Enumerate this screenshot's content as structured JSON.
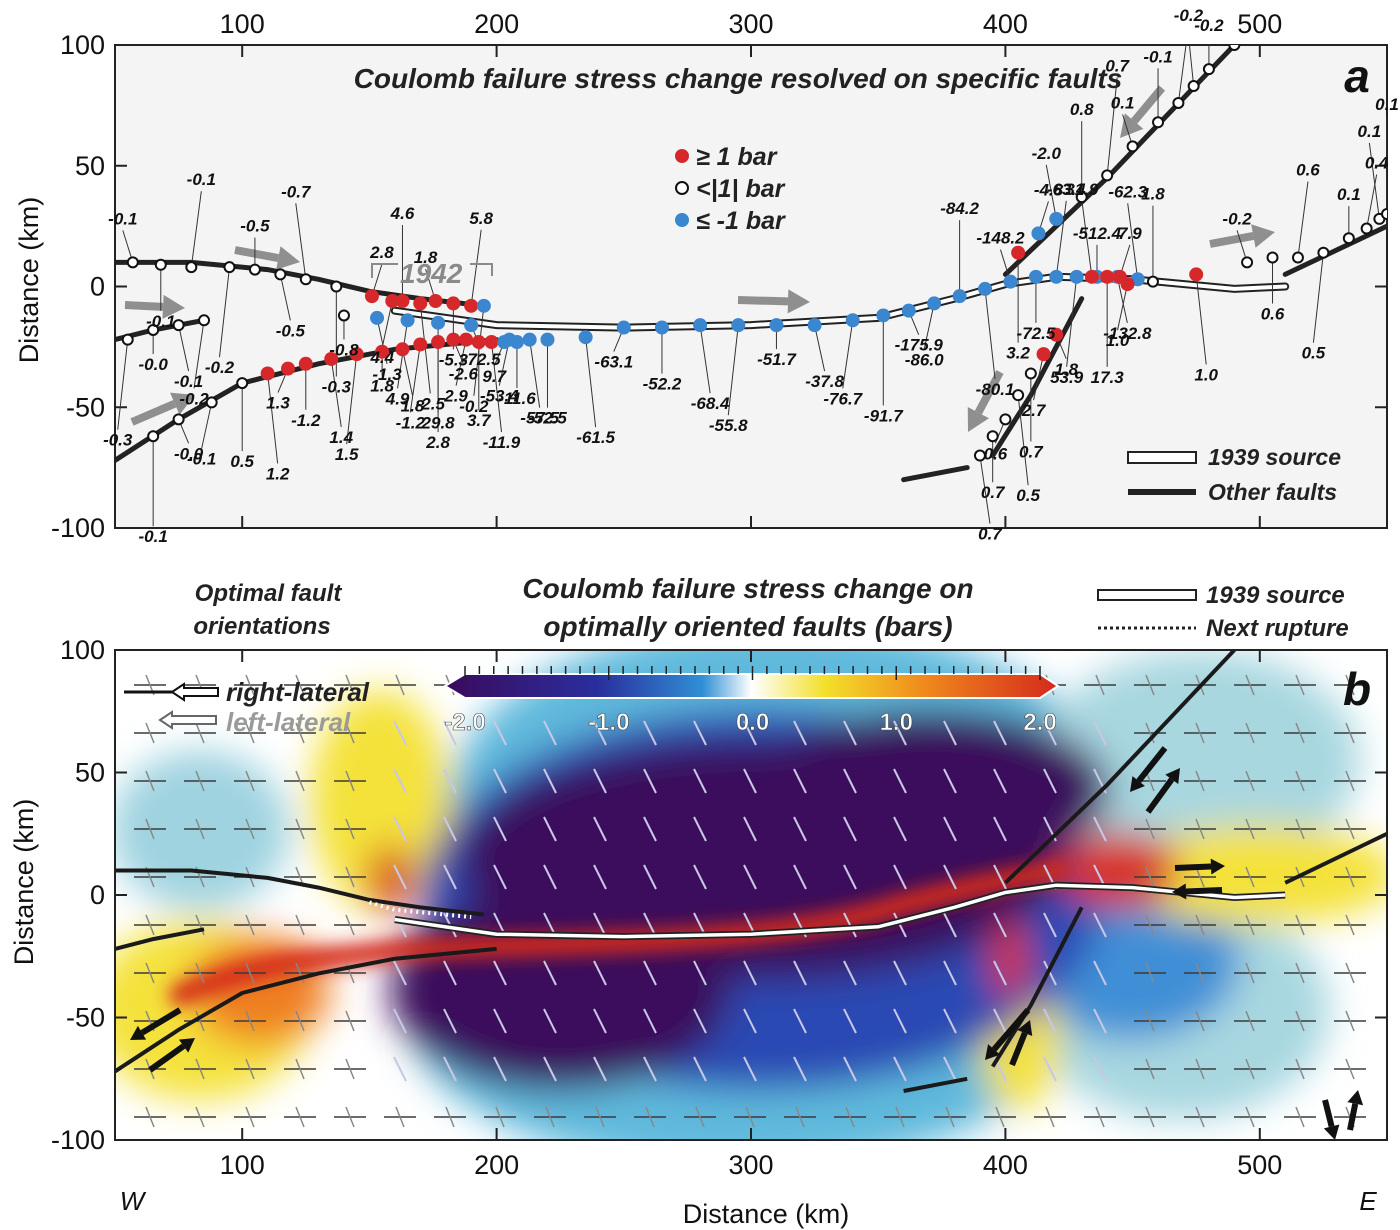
{
  "chart_data": [
    {
      "type": "scatter",
      "panel": "a",
      "title": "Coulomb failure stress change resolved on specific faults",
      "ylabel": "Distance (km)",
      "xlim": [
        50,
        550
      ],
      "ylim": [
        -100,
        100
      ],
      "x_ticks": [
        100,
        200,
        300,
        400,
        500
      ],
      "y_ticks": [
        100,
        50,
        0,
        -50,
        -100
      ],
      "annotation": "1942",
      "legend": [
        {
          "label": "≥  1 bar",
          "color": "#d6282b",
          "kind": "positive"
        },
        {
          "label": "<|1| bar",
          "color": "#ffffff",
          "kind": "neutral"
        },
        {
          "label": "≤ -1 bar",
          "color": "#3a86cf",
          "kind": "negative"
        }
      ],
      "line_legend": [
        {
          "label": "1939 source",
          "kind": "source"
        },
        {
          "label": "Other faults",
          "kind": "fault"
        }
      ],
      "faults": [
        {
          "name": "north-west",
          "points": [
            [
              50,
              10
            ],
            [
              80,
              10
            ],
            [
              110,
              7
            ],
            [
              130,
              3
            ],
            [
              150,
              -2
            ],
            [
              170,
              -5
            ],
            [
              195,
              -8
            ]
          ]
        },
        {
          "name": "1939-rupture",
          "points": [
            [
              160,
              -10
            ],
            [
              200,
              -16
            ],
            [
              250,
              -17
            ],
            [
              300,
              -16
            ],
            [
              350,
              -13
            ],
            [
              380,
              -5
            ],
            [
              400,
              1
            ],
            [
              420,
              4
            ],
            [
              450,
              3
            ],
            [
              490,
              -1
            ],
            [
              510,
              0
            ]
          ]
        },
        {
          "name": "south-west-1",
          "points": [
            [
              50,
              -22
            ],
            [
              65,
              -18
            ],
            [
              85,
              -14
            ]
          ]
        },
        {
          "name": "south-west-2",
          "points": [
            [
              50,
              -72
            ],
            [
              75,
              -55
            ],
            [
              100,
              -40
            ],
            [
              130,
              -32
            ],
            [
              160,
              -26
            ],
            [
              200,
              -22
            ]
          ]
        },
        {
          "name": "north-east",
          "points": [
            [
              400,
              5
            ],
            [
              440,
              45
            ],
            [
              490,
              100
            ]
          ]
        },
        {
          "name": "south-east",
          "points": [
            [
              395,
              -70
            ],
            [
              410,
              -45
            ],
            [
              430,
              -5
            ]
          ]
        },
        {
          "name": "east",
          "points": [
            [
              510,
              5
            ],
            [
              540,
              20
            ],
            [
              550,
              25
            ]
          ]
        },
        {
          "name": "south-tail",
          "points": [
            [
              360,
              -80
            ],
            [
              385,
              -75
            ]
          ]
        }
      ],
      "values": [
        {
          "x": 57,
          "y": 10,
          "v": "-0.1",
          "s": "neutral"
        },
        {
          "x": 68,
          "y": 9,
          "v": "-0.1",
          "s": "neutral"
        },
        {
          "x": 80,
          "y": 8,
          "v": "-0.1",
          "s": "neutral"
        },
        {
          "x": 95,
          "y": 8,
          "v": "-0.2",
          "s": "neutral"
        },
        {
          "x": 105,
          "y": 7,
          "v": "-0.5",
          "s": "neutral"
        },
        {
          "x": 115,
          "y": 5,
          "v": "-0.5",
          "s": "neutral"
        },
        {
          "x": 125,
          "y": 3,
          "v": "-0.7",
          "s": "neutral"
        },
        {
          "x": 137,
          "y": 0,
          "v": "-0.3",
          "s": "neutral"
        },
        {
          "x": 151,
          "y": -4,
          "v": "2.8",
          "s": "positive"
        },
        {
          "x": 159,
          "y": -6,
          "v": "4.4",
          "s": "positive"
        },
        {
          "x": 163,
          "y": -6,
          "v": "4.6",
          "s": "positive"
        },
        {
          "x": 170,
          "y": -7,
          "v": "-2.5",
          "s": "positive"
        },
        {
          "x": 176,
          "y": -6,
          "v": "1.8",
          "s": "positive"
        },
        {
          "x": 183,
          "y": -7,
          "v": "-5.3",
          "s": "positive"
        },
        {
          "x": 190,
          "y": -8,
          "v": "5.8",
          "s": "positive"
        },
        {
          "x": 195,
          "y": -8,
          "v": "-0.2",
          "s": "negative"
        },
        {
          "x": 140,
          "y": -12,
          "v": "-0.8",
          "s": "neutral"
        },
        {
          "x": 153,
          "y": -13,
          "v": "-1.3",
          "s": "negative"
        },
        {
          "x": 165,
          "y": -14,
          "v": "4.9",
          "s": "negative"
        },
        {
          "x": 177,
          "y": -15,
          "v": "29.8",
          "s": "negative"
        },
        {
          "x": 190,
          "y": -16,
          "v": "-72.5",
          "s": "negative"
        },
        {
          "x": 205,
          "y": -22,
          "v": "-53.4",
          "s": "negative"
        },
        {
          "x": 220,
          "y": -22,
          "v": "-52.5",
          "s": "negative"
        },
        {
          "x": 235,
          "y": -21,
          "v": "-61.5",
          "s": "negative"
        },
        {
          "x": 250,
          "y": -17,
          "v": "-63.1",
          "s": "negative"
        },
        {
          "x": 265,
          "y": -17,
          "v": "-52.2",
          "s": "negative"
        },
        {
          "x": 280,
          "y": -16,
          "v": "-68.4",
          "s": "negative"
        },
        {
          "x": 295,
          "y": -16,
          "v": "-55.8",
          "s": "negative"
        },
        {
          "x": 310,
          "y": -16,
          "v": "-51.7",
          "s": "negative"
        },
        {
          "x": 325,
          "y": -16,
          "v": "-37.8",
          "s": "negative"
        },
        {
          "x": 340,
          "y": -14,
          "v": "-76.7",
          "s": "negative"
        },
        {
          "x": 352,
          "y": -12,
          "v": "-91.7",
          "s": "negative"
        },
        {
          "x": 362,
          "y": -10,
          "v": "-175.9",
          "s": "negative"
        },
        {
          "x": 372,
          "y": -7,
          "v": "-86.0",
          "s": "negative"
        },
        {
          "x": 382,
          "y": -4,
          "v": "-84.2",
          "s": "negative"
        },
        {
          "x": 392,
          "y": -1,
          "v": "-80.1",
          "s": "negative"
        },
        {
          "x": 402,
          "y": 2,
          "v": "-148.2",
          "s": "negative"
        },
        {
          "x": 412,
          "y": 4,
          "v": "-72.5",
          "s": "negative"
        },
        {
          "x": 420,
          "y": 4,
          "v": "-63.4",
          "s": "negative"
        },
        {
          "x": 428,
          "y": 4,
          "v": "53.9",
          "s": "negative"
        },
        {
          "x": 436,
          "y": 4,
          "v": "-512.4",
          "s": "negative"
        },
        {
          "x": 444,
          "y": 4,
          "v": "-132.8",
          "s": "negative"
        },
        {
          "x": 452,
          "y": 3,
          "v": "-62.3",
          "s": "negative"
        },
        {
          "x": 405,
          "y": 14,
          "v": "3.2",
          "s": "positive"
        },
        {
          "x": 413,
          "y": 22,
          "v": "-4.8",
          "s": "negative"
        },
        {
          "x": 420,
          "y": 28,
          "v": "-2.0",
          "s": "negative"
        },
        {
          "x": 430,
          "y": 37,
          "v": "0.8",
          "s": "neutral"
        },
        {
          "x": 440,
          "y": 46,
          "v": "0.7",
          "s": "neutral"
        },
        {
          "x": 450,
          "y": 58,
          "v": "0.1",
          "s": "neutral"
        },
        {
          "x": 460,
          "y": 68,
          "v": "-0.1",
          "s": "neutral"
        },
        {
          "x": 468,
          "y": 76,
          "v": "-0.2",
          "s": "neutral"
        },
        {
          "x": 474,
          "y": 83,
          "v": "-0.2",
          "s": "neutral"
        },
        {
          "x": 480,
          "y": 90,
          "v": "-0.2",
          "s": "neutral"
        },
        {
          "x": 490,
          "y": 100,
          "v": "-0.1",
          "s": "neutral"
        },
        {
          "x": 434,
          "y": 4,
          "v": "31.9",
          "s": "positive"
        },
        {
          "x": 440,
          "y": 4,
          "v": "17.3",
          "s": "positive"
        },
        {
          "x": 445,
          "y": 4,
          "v": "7.9",
          "s": "positive"
        },
        {
          "x": 448,
          "y": 1,
          "v": "1.0",
          "s": "positive"
        },
        {
          "x": 458,
          "y": 2,
          "v": "1.8",
          "s": "neutral"
        },
        {
          "x": 475,
          "y": 5,
          "v": "1.0",
          "s": "positive"
        },
        {
          "x": 495,
          "y": 10,
          "v": "-0.2",
          "s": "neutral"
        },
        {
          "x": 505,
          "y": 12,
          "v": "0.6",
          "s": "neutral"
        },
        {
          "x": 515,
          "y": 12,
          "v": "0.6",
          "s": "neutral"
        },
        {
          "x": 525,
          "y": 14,
          "v": "0.5",
          "s": "neutral"
        },
        {
          "x": 535,
          "y": 20,
          "v": "0.1",
          "s": "neutral"
        },
        {
          "x": 542,
          "y": 24,
          "v": "0.4",
          "s": "neutral"
        },
        {
          "x": 547,
          "y": 28,
          "v": "0.1",
          "s": "neutral"
        },
        {
          "x": 550,
          "y": 30,
          "v": "0.1",
          "s": "neutral"
        },
        {
          "x": 420,
          "y": -20,
          "v": "1.8",
          "s": "positive"
        },
        {
          "x": 415,
          "y": -28,
          "v": "2.7",
          "s": "positive"
        },
        {
          "x": 410,
          "y": -36,
          "v": "0.7",
          "s": "neutral"
        },
        {
          "x": 405,
          "y": -45,
          "v": "0.5",
          "s": "neutral"
        },
        {
          "x": 400,
          "y": -55,
          "v": "0.6",
          "s": "neutral"
        },
        {
          "x": 395,
          "y": -62,
          "v": "0.7",
          "s": "neutral"
        },
        {
          "x": 390,
          "y": -70,
          "v": "0.7",
          "s": "neutral"
        },
        {
          "x": 55,
          "y": -22,
          "v": "-0.3",
          "s": "neutral"
        },
        {
          "x": 65,
          "y": -18,
          "v": "-0.0",
          "s": "neutral"
        },
        {
          "x": 75,
          "y": -16,
          "v": "-0.1",
          "s": "neutral"
        },
        {
          "x": 85,
          "y": -14,
          "v": "-0.2",
          "s": "neutral"
        },
        {
          "x": 65,
          "y": -62,
          "v": "-0.1",
          "s": "neutral"
        },
        {
          "x": 75,
          "y": -55,
          "v": "-0.0",
          "s": "neutral"
        },
        {
          "x": 88,
          "y": -48,
          "v": "-0.1",
          "s": "neutral"
        },
        {
          "x": 100,
          "y": -40,
          "v": "0.5",
          "s": "neutral"
        },
        {
          "x": 110,
          "y": -36,
          "v": "1.2",
          "s": "positive"
        },
        {
          "x": 118,
          "y": -34,
          "v": "1.3",
          "s": "positive"
        },
        {
          "x": 125,
          "y": -32,
          "v": "-1.2",
          "s": "positive"
        },
        {
          "x": 135,
          "y": -30,
          "v": "1.4",
          "s": "positive"
        },
        {
          "x": 145,
          "y": -28,
          "v": "1.5",
          "s": "positive"
        },
        {
          "x": 155,
          "y": -27,
          "v": "1.8",
          "s": "positive"
        },
        {
          "x": 163,
          "y": -26,
          "v": "1.8",
          "s": "positive"
        },
        {
          "x": 170,
          "y": -24,
          "v": "-1.2",
          "s": "positive"
        },
        {
          "x": 177,
          "y": -23,
          "v": "2.8",
          "s": "positive"
        },
        {
          "x": 183,
          "y": -22,
          "v": "-2.6",
          "s": "positive"
        },
        {
          "x": 188,
          "y": -22,
          "v": "2.9",
          "s": "positive"
        },
        {
          "x": 193,
          "y": -23,
          "v": "3.7",
          "s": "positive"
        },
        {
          "x": 198,
          "y": -23,
          "v": "-11.9",
          "s": "positive"
        },
        {
          "x": 203,
          "y": -23,
          "v": "9.7",
          "s": "negative"
        },
        {
          "x": 208,
          "y": -23,
          "v": "-11.6",
          "s": "negative"
        },
        {
          "x": 213,
          "y": -22,
          "v": "-57.5",
          "s": "negative"
        }
      ]
    },
    {
      "type": "heatmap",
      "panel": "b",
      "title": "Coulomb failure stress change on optimally oriented faults (bars)",
      "subtitle": "Optimal fault orientations",
      "xlabel": "Distance (km)",
      "ylabel": "Distance (km)",
      "xlim": [
        50,
        550
      ],
      "ylim": [
        -100,
        100
      ],
      "x_ticks": [
        100,
        200,
        300,
        400,
        500
      ],
      "y_ticks": [
        100,
        50,
        0,
        -50,
        -100
      ],
      "colorbar": {
        "min": -2.0,
        "max": 2.0,
        "labels": [
          "-2.0",
          "-1.0",
          "0.0",
          "1.0",
          "2.0"
        ],
        "colors": [
          "#3a0a5c",
          "#2a2f9e",
          "#2f8fd4",
          "#ffffff",
          "#f3e02a",
          "#f08a1c",
          "#d42a1c"
        ]
      },
      "legend": [
        {
          "label": "right-lateral",
          "kind": "right"
        },
        {
          "label": "left-lateral",
          "kind": "left"
        }
      ],
      "line_legend": [
        {
          "label": "1939 source",
          "kind": "source"
        },
        {
          "label": "Next rupture",
          "kind": "next"
        }
      ],
      "direction_labels": {
        "west": "W",
        "east": "E"
      }
    }
  ]
}
